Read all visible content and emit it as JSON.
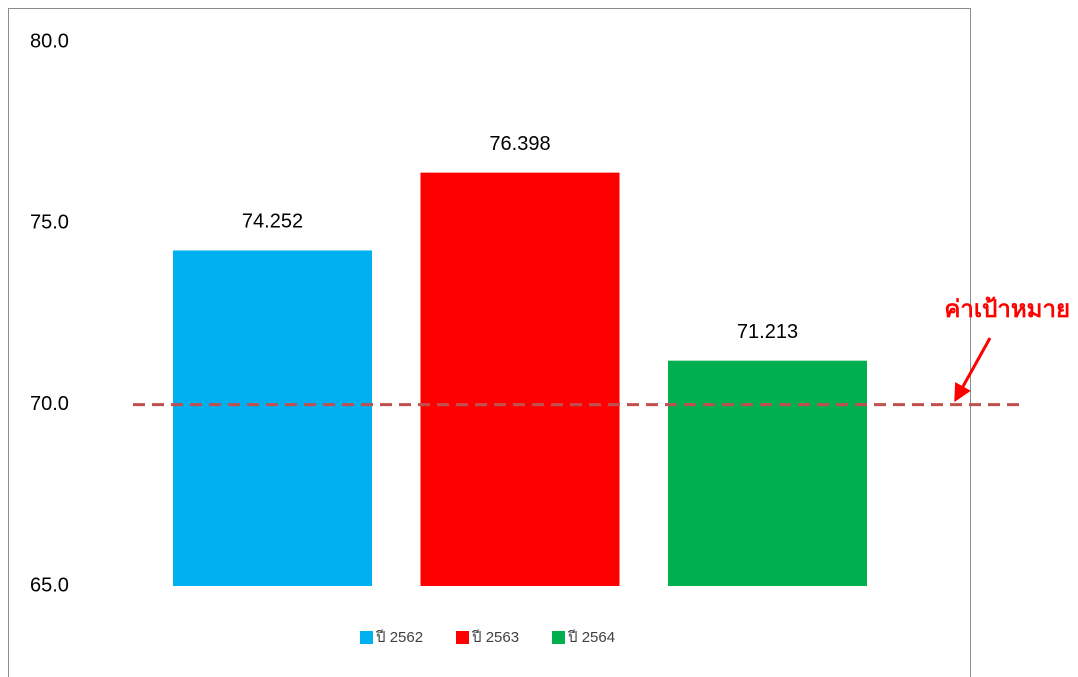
{
  "chart_data": {
    "type": "bar",
    "series": [
      {
        "name": "ปี 2562",
        "color": "#00b0f0",
        "values": [
          74.252
        ]
      },
      {
        "name": "ปี 2563",
        "color": "#ff0000",
        "values": [
          76.398
        ]
      },
      {
        "name": "ปี 2564",
        "color": "#00b050",
        "values": [
          71.213
        ]
      }
    ],
    "ylim": [
      65,
      80
    ],
    "yticks": [
      {
        "value": 65,
        "label": "65.0"
      },
      {
        "value": 70,
        "label": "70.0"
      },
      {
        "value": 75,
        "label": "75.0"
      },
      {
        "value": 80,
        "label": "80.0"
      }
    ],
    "grid": false,
    "legend": "bottom",
    "target_line": {
      "value": 70,
      "label": "ค่าเป้าหมาย",
      "color": "#c0504d"
    }
  }
}
